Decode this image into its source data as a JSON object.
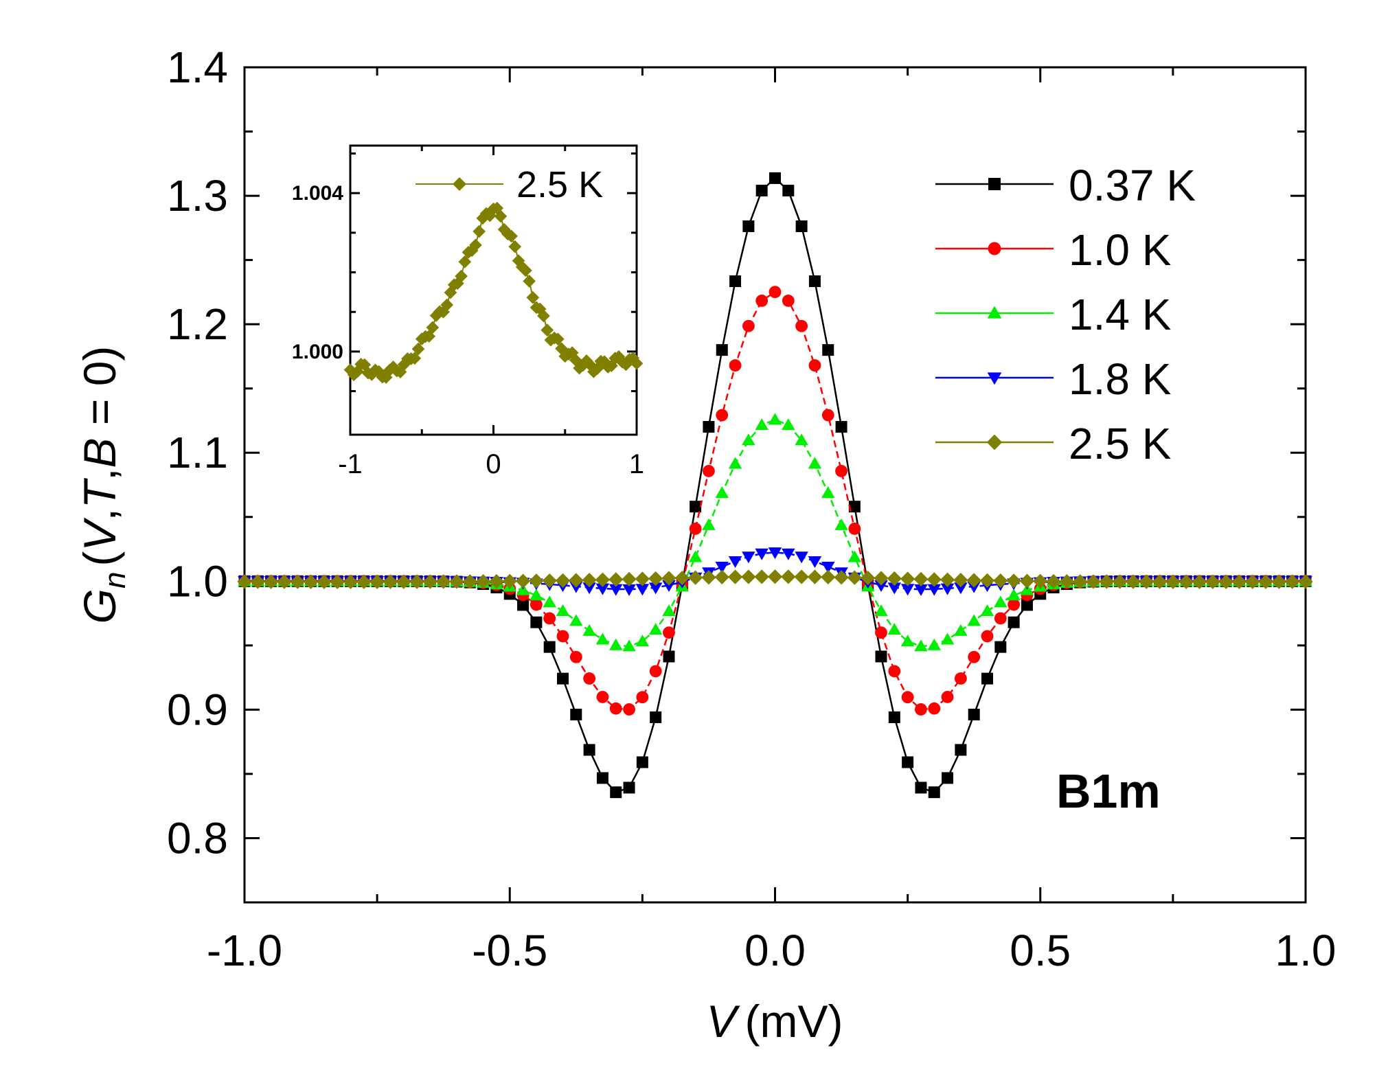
{
  "chart_data": [
    {
      "type": "line",
      "xlabel_symbol": "V",
      "xlabel_unit": "(mV)",
      "ylabel_main": "G",
      "ylabel_sub": "n",
      "ylabel_args": [
        "(",
        "V",
        ",",
        "T",
        ",",
        "B",
        " = 0)"
      ],
      "xlim": [
        -1.0,
        1.0
      ],
      "ylim": [
        0.75,
        1.4
      ],
      "x_ticks": [
        -1.0,
        -0.5,
        0.0,
        0.5,
        1.0
      ],
      "x_tick_labels": [
        "-1.0",
        "-0.5",
        "0.0",
        "0.5",
        "1.0"
      ],
      "y_ticks": [
        0.8,
        0.9,
        1.0,
        1.1,
        1.2,
        1.3,
        1.4
      ],
      "y_tick_labels": [
        "0.8",
        "0.9",
        "1.0",
        "1.1",
        "1.2",
        "1.3",
        "1.4"
      ],
      "legend_position": "top-right",
      "annotation": "B1m",
      "series": [
        {
          "name": "0.37 K",
          "color": "#000000",
          "marker": "square",
          "dip": -0.172,
          "dip_center": 0.285,
          "dip_width": 0.09,
          "peak": 0.316,
          "peak_width": 0.105,
          "points": [
            [
              -1.0,
              1.0
            ],
            [
              -0.8,
              0.998
            ],
            [
              -0.6,
              0.978
            ],
            [
              -0.5,
              0.96
            ],
            [
              -0.4,
              0.905
            ],
            [
              -0.35,
              0.865
            ],
            [
              -0.3,
              0.83
            ],
            [
              -0.25,
              0.855
            ],
            [
              -0.2,
              0.94
            ],
            [
              -0.15,
              1.08
            ],
            [
              -0.1,
              1.2
            ],
            [
              -0.05,
              1.285
            ],
            [
              0.0,
              1.31
            ],
            [
              0.05,
              1.285
            ],
            [
              0.1,
              1.2
            ],
            [
              0.15,
              1.08
            ],
            [
              0.2,
              0.94
            ],
            [
              0.25,
              0.855
            ],
            [
              0.3,
              0.83
            ],
            [
              0.35,
              0.865
            ],
            [
              0.4,
              0.905
            ],
            [
              0.5,
              0.96
            ],
            [
              0.6,
              0.978
            ],
            [
              0.8,
              0.998
            ],
            [
              1.0,
              1.0
            ]
          ]
        },
        {
          "name": "1.0 K",
          "color": "#ff0000",
          "marker": "circle",
          "dip": -0.11,
          "dip_center": 0.27,
          "dip_width": 0.095,
          "peak": 0.229,
          "peak_width": 0.11,
          "points": [
            [
              -1.0,
              1.0
            ],
            [
              -0.8,
              0.998
            ],
            [
              -0.6,
              0.985
            ],
            [
              -0.5,
              0.968
            ],
            [
              -0.4,
              0.93
            ],
            [
              -0.3,
              0.895
            ],
            [
              -0.27,
              0.89
            ],
            [
              -0.2,
              0.93
            ],
            [
              -0.15,
              1.03
            ],
            [
              -0.1,
              1.13
            ],
            [
              -0.05,
              1.2
            ],
            [
              0.0,
              1.225
            ],
            [
              0.05,
              1.2
            ],
            [
              0.1,
              1.13
            ],
            [
              0.15,
              1.03
            ],
            [
              0.2,
              0.93
            ],
            [
              0.27,
              0.89
            ],
            [
              0.3,
              0.895
            ],
            [
              0.4,
              0.93
            ],
            [
              0.5,
              0.968
            ],
            [
              0.6,
              0.985
            ],
            [
              0.8,
              0.998
            ],
            [
              1.0,
              1.0
            ]
          ]
        },
        {
          "name": "1.4 K",
          "color": "#00ee00",
          "marker": "triangle-up",
          "dip": -0.057,
          "dip_center": 0.26,
          "dip_width": 0.105,
          "peak": 0.131,
          "peak_width": 0.11,
          "points": [
            [
              -1.0,
              1.0
            ],
            [
              -0.6,
              0.993
            ],
            [
              -0.5,
              0.98
            ],
            [
              -0.4,
              0.96
            ],
            [
              -0.3,
              0.946
            ],
            [
              -0.25,
              0.945
            ],
            [
              -0.2,
              0.96
            ],
            [
              -0.15,
              1.02
            ],
            [
              -0.1,
              1.07
            ],
            [
              -0.05,
              1.11
            ],
            [
              0.0,
              1.125
            ],
            [
              0.05,
              1.11
            ],
            [
              0.1,
              1.07
            ],
            [
              0.15,
              1.02
            ],
            [
              0.2,
              0.96
            ],
            [
              0.25,
              0.945
            ],
            [
              0.3,
              0.946
            ],
            [
              0.4,
              0.96
            ],
            [
              0.5,
              0.98
            ],
            [
              0.6,
              0.993
            ],
            [
              1.0,
              1.0
            ]
          ]
        },
        {
          "name": "1.8 K",
          "color": "#0000ff",
          "marker": "triangle-down",
          "dip": -0.007,
          "dip_center": 0.25,
          "dip_width": 0.12,
          "peak": 0.024,
          "peak_width": 0.1,
          "points": [
            [
              -1.0,
              1.0
            ],
            [
              -0.5,
              0.998
            ],
            [
              -0.3,
              0.994
            ],
            [
              -0.2,
              0.995
            ],
            [
              -0.1,
              1.01
            ],
            [
              0.0,
              1.02
            ],
            [
              0.1,
              1.01
            ],
            [
              0.2,
              0.995
            ],
            [
              0.3,
              0.994
            ],
            [
              0.5,
              0.998
            ],
            [
              1.0,
              1.0
            ]
          ]
        },
        {
          "name": "2.5 K",
          "color": "#808000",
          "marker": "diamond",
          "dip": -0.0005,
          "dip_center": 0.8,
          "dip_width": 0.25,
          "peak": 0.0035,
          "peak_width": 0.22,
          "points": [
            [
              -1.0,
              1.0
            ],
            [
              -0.5,
              1.0
            ],
            [
              -0.2,
              1.001
            ],
            [
              0.0,
              1.003
            ],
            [
              0.2,
              1.001
            ],
            [
              0.5,
              1.0
            ],
            [
              1.0,
              1.0
            ]
          ]
        }
      ]
    },
    {
      "type": "line",
      "inset": true,
      "xlim": [
        -1.0,
        1.0
      ],
      "ylim": [
        0.9979,
        1.0052
      ],
      "x_ticks": [
        -1,
        0,
        1
      ],
      "x_tick_labels": [
        "-1",
        "0",
        "1"
      ],
      "y_ticks": [
        1.0,
        1.004
      ],
      "y_tick_labels": [
        "1.000",
        "1.004"
      ],
      "legend_position": "top",
      "series": [
        {
          "name": "2.5 K",
          "color": "#808000",
          "marker": "diamond",
          "points": [
            [
              -1.0,
              0.9995
            ],
            [
              -0.9,
              0.9996
            ],
            [
              -0.8,
              0.9994
            ],
            [
              -0.7,
              0.9995
            ],
            [
              -0.6,
              0.9997
            ],
            [
              -0.5,
              1.0002
            ],
            [
              -0.4,
              1.0008
            ],
            [
              -0.3,
              1.0014
            ],
            [
              -0.2,
              1.0022
            ],
            [
              -0.1,
              1.003
            ],
            [
              -0.05,
              1.0035
            ],
            [
              0.0,
              1.0036
            ],
            [
              0.05,
              1.0034
            ],
            [
              0.1,
              1.003
            ],
            [
              0.2,
              1.0022
            ],
            [
              0.3,
              1.0012
            ],
            [
              0.4,
              1.0004
            ],
            [
              0.5,
              1.0
            ],
            [
              0.6,
              0.9997
            ],
            [
              0.7,
              0.9996
            ],
            [
              0.8,
              0.9997
            ],
            [
              0.9,
              0.9998
            ],
            [
              1.0,
              0.9997
            ]
          ]
        }
      ]
    }
  ]
}
